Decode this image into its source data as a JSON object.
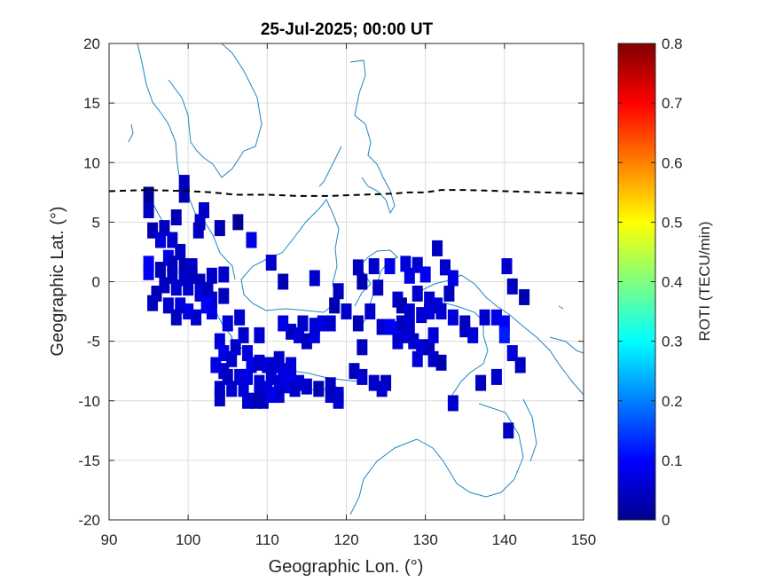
{
  "chart_data": {
    "type": "heatmap",
    "title": "25-Jul-2025; 00:00 UT",
    "xlabel": "Geographic Lon. (°)",
    "ylabel": "Geographic Lat. (°)",
    "xlim": [
      90,
      150
    ],
    "ylim": [
      -20,
      20
    ],
    "xticks": [
      "90",
      "100",
      "110",
      "120",
      "130",
      "140",
      "150"
    ],
    "yticks": [
      "20",
      "15",
      "10",
      "5",
      "0",
      "-5",
      "-10",
      "-15",
      "-20"
    ],
    "grid": true,
    "colorbar": {
      "label": "ROTI (TECU/min)",
      "range": [
        0,
        0.8
      ],
      "colormap": "jet",
      "ticks": [
        "0",
        "0.1",
        "0.2",
        "0.3",
        "0.4",
        "0.5",
        "0.6",
        "0.7",
        "0.8"
      ]
    },
    "terminator_line": {
      "style": "dashed",
      "color": "#000000",
      "points": [
        [
          90,
          7.6
        ],
        [
          95,
          7.7
        ],
        [
          100,
          7.6
        ],
        [
          103,
          7.5
        ],
        [
          106,
          7.3
        ],
        [
          110,
          7.3
        ],
        [
          114,
          7.2
        ],
        [
          118,
          7.2
        ],
        [
          122,
          7.3
        ],
        [
          126,
          7.4
        ],
        [
          128,
          7.5
        ],
        [
          130,
          7.5
        ],
        [
          132,
          7.7
        ],
        [
          135,
          7.7
        ],
        [
          140,
          7.6
        ],
        [
          145,
          7.5
        ],
        [
          150,
          7.4
        ]
      ]
    },
    "roti_points": [
      [
        95,
        7.3,
        0.02
      ],
      [
        95,
        6.0,
        0.05
      ],
      [
        99.5,
        8.3,
        0.05
      ],
      [
        99.5,
        7.3,
        0.04
      ],
      [
        98.5,
        5.4,
        0.04
      ],
      [
        102,
        6.0,
        0.06
      ],
      [
        101.5,
        5.0,
        0.06
      ],
      [
        106.3,
        5.0,
        0.02
      ],
      [
        104,
        4.5,
        0.04
      ],
      [
        101.3,
        4.3,
        0.05
      ],
      [
        97,
        4.5,
        0.05
      ],
      [
        95.5,
        4.3,
        0.04
      ],
      [
        96.5,
        3.5,
        0.07
      ],
      [
        98,
        3.5,
        0.06
      ],
      [
        99,
        2.5,
        0.05
      ],
      [
        97.5,
        2.0,
        0.08
      ],
      [
        108,
        3.5,
        0.08
      ],
      [
        95,
        1.5,
        0.1
      ],
      [
        95,
        0.8,
        0.09
      ],
      [
        96.5,
        1.0,
        0.04
      ],
      [
        98,
        1.5,
        0.05
      ],
      [
        99.5,
        1.3,
        0.04
      ],
      [
        100.5,
        1.3,
        0.06
      ],
      [
        98,
        0.5,
        0.05
      ],
      [
        99.5,
        0.3,
        0.06
      ],
      [
        100.5,
        0.5,
        0.05
      ],
      [
        101.5,
        0.0,
        0.05
      ],
      [
        103,
        0.5,
        0.06
      ],
      [
        104.5,
        0.6,
        0.06
      ],
      [
        97,
        -0.3,
        0.05
      ],
      [
        98.5,
        -0.5,
        0.06
      ],
      [
        100,
        -0.5,
        0.06
      ],
      [
        101.5,
        -1.0,
        0.07
      ],
      [
        102.5,
        -0.7,
        0.05
      ],
      [
        103,
        -1.5,
        0.06
      ],
      [
        104.5,
        -1.2,
        0.05
      ],
      [
        96,
        -1.0,
        0.04
      ],
      [
        95.5,
        -1.8,
        0.05
      ],
      [
        97.5,
        -2.0,
        0.06
      ],
      [
        99,
        -2.0,
        0.07
      ],
      [
        100,
        -2.5,
        0.08
      ],
      [
        102.3,
        -2.0,
        0.1
      ],
      [
        103,
        -2.5,
        0.08
      ],
      [
        101,
        -3.0,
        0.06
      ],
      [
        98.5,
        -3.0,
        0.05
      ],
      [
        110.5,
        1.6,
        0.06
      ],
      [
        116,
        0.3,
        0.06
      ],
      [
        112,
        0.0,
        0.04
      ],
      [
        121.5,
        1.2,
        0.05
      ],
      [
        123.5,
        1.3,
        0.06
      ],
      [
        125.5,
        1.3,
        0.08
      ],
      [
        127.5,
        1.5,
        0.07
      ],
      [
        129,
        1.4,
        0.06
      ],
      [
        131.5,
        2.8,
        0.05
      ],
      [
        132.5,
        1.2,
        0.06
      ],
      [
        133.5,
        0.3,
        0.08
      ],
      [
        130,
        0.6,
        0.09
      ],
      [
        128,
        0.5,
        0.08
      ],
      [
        122,
        0.0,
        0.04
      ],
      [
        124,
        -0.5,
        0.05
      ],
      [
        126.5,
        -1.5,
        0.06
      ],
      [
        129,
        -1.0,
        0.06
      ],
      [
        130.5,
        -1.5,
        0.06
      ],
      [
        131.5,
        -2.0,
        0.07
      ],
      [
        132,
        -2.5,
        0.06
      ],
      [
        133,
        -1.0,
        0.05
      ],
      [
        127,
        -2.0,
        0.04
      ],
      [
        128,
        -2.5,
        0.06
      ],
      [
        129.5,
        -2.8,
        0.06
      ],
      [
        130.5,
        -2.5,
        0.07
      ],
      [
        140.3,
        1.3,
        0.06
      ],
      [
        141,
        -0.4,
        0.05
      ],
      [
        142.5,
        -1.3,
        0.04
      ],
      [
        137.5,
        -3.0,
        0.06
      ],
      [
        139,
        -3.0,
        0.08
      ],
      [
        140,
        -3.5,
        0.1
      ],
      [
        140,
        -4.5,
        0.12
      ],
      [
        133.5,
        -3.0,
        0.07
      ],
      [
        135,
        -4.0,
        0.06
      ],
      [
        136,
        -4.5,
        0.07
      ],
      [
        135,
        -3.5,
        0.05
      ],
      [
        119,
        -0.8,
        0.05
      ],
      [
        118.5,
        -2.0,
        0.04
      ],
      [
        120,
        -2.5,
        0.06
      ],
      [
        121.5,
        -3.5,
        0.04
      ],
      [
        123,
        -2.5,
        0.06
      ],
      [
        124.5,
        -3.8,
        0.06
      ],
      [
        125.5,
        -3.8,
        0.09
      ],
      [
        126.5,
        -4.0,
        0.1
      ],
      [
        127.5,
        -4.5,
        0.07
      ],
      [
        128.5,
        -5.0,
        0.06
      ],
      [
        129.5,
        -5.5,
        0.07
      ],
      [
        130.5,
        -5.5,
        0.05
      ],
      [
        131,
        -6.5,
        0.06
      ],
      [
        129,
        -6.5,
        0.07
      ],
      [
        126.5,
        -5.0,
        0.06
      ],
      [
        132,
        -6.8,
        0.04
      ],
      [
        137,
        -8.5,
        0.05
      ],
      [
        139,
        -8.0,
        0.06
      ],
      [
        141,
        -6.0,
        0.07
      ],
      [
        142,
        -7.0,
        0.05
      ],
      [
        133.5,
        -10.2,
        0.06
      ],
      [
        140.5,
        -12.5,
        0.05
      ],
      [
        122,
        -5.5,
        0.05
      ],
      [
        121,
        -7.5,
        0.05
      ],
      [
        122,
        -8.0,
        0.06
      ],
      [
        123.5,
        -8.5,
        0.06
      ],
      [
        125,
        -8.5,
        0.05
      ],
      [
        124.5,
        -9.0,
        0.06
      ],
      [
        119,
        -9.5,
        0.06
      ],
      [
        116.5,
        -9.0,
        0.04
      ],
      [
        118,
        -8.7,
        0.05
      ],
      [
        115,
        -8.8,
        0.06
      ],
      [
        114,
        -8.5,
        0.06
      ],
      [
        113,
        -4.2,
        0.05
      ],
      [
        114,
        -4.5,
        0.07
      ],
      [
        115,
        -5.0,
        0.05
      ],
      [
        116,
        -4.5,
        0.08
      ],
      [
        117,
        -3.5,
        0.08
      ],
      [
        118,
        -3.5,
        0.06
      ],
      [
        114.5,
        -3.5,
        0.06
      ],
      [
        116,
        -3.7,
        0.07
      ],
      [
        112,
        -3.5,
        0.08
      ],
      [
        109,
        -4.5,
        0.06
      ],
      [
        105,
        -3.5,
        0.07
      ],
      [
        106.5,
        -3.0,
        0.06
      ],
      [
        107,
        -4.5,
        0.06
      ],
      [
        104,
        -5.0,
        0.07
      ],
      [
        104.5,
        -6.0,
        0.08
      ],
      [
        105.5,
        -6.5,
        0.06
      ],
      [
        106,
        -5.5,
        0.06
      ],
      [
        107.5,
        -6.0,
        0.07
      ],
      [
        108,
        -7.0,
        0.08
      ],
      [
        109,
        -6.8,
        0.06
      ],
      [
        110,
        -7.0,
        0.07
      ],
      [
        111,
        -7.0,
        0.06
      ],
      [
        112,
        -7.5,
        0.08
      ],
      [
        113,
        -7.0,
        0.07
      ],
      [
        111.5,
        -6.5,
        0.06
      ],
      [
        113,
        -8.0,
        0.08
      ],
      [
        103.5,
        -7.0,
        0.08
      ],
      [
        104.5,
        -7.5,
        0.07
      ],
      [
        105,
        -8.0,
        0.05
      ],
      [
        106.5,
        -8.0,
        0.07
      ],
      [
        107.5,
        -8.0,
        0.08
      ],
      [
        109,
        -8.5,
        0.07
      ],
      [
        110.5,
        -8.0,
        0.06
      ],
      [
        111.5,
        -8.5,
        0.07
      ],
      [
        112.5,
        -8.7,
        0.08
      ],
      [
        104,
        -9.0,
        0.06
      ],
      [
        105.5,
        -9.0,
        0.06
      ],
      [
        107,
        -9.0,
        0.07
      ],
      [
        109,
        -9.5,
        0.06
      ],
      [
        110,
        -9.0,
        0.07
      ],
      [
        104,
        -9.8,
        0.05
      ],
      [
        108.5,
        -10.0,
        0.04
      ],
      [
        107.5,
        -10.0,
        0.06
      ],
      [
        109.5,
        -10.0,
        0.05
      ],
      [
        111.5,
        -9.5,
        0.06
      ],
      [
        110.5,
        -9.5,
        0.08
      ],
      [
        113.5,
        -9.0,
        0.06
      ],
      [
        118,
        -9.5,
        0.05
      ],
      [
        119,
        -10.0,
        0.06
      ],
      [
        127,
        -3.5,
        0.05
      ],
      [
        128,
        -3.8,
        0.06
      ],
      [
        131,
        -4.5,
        0.07
      ]
    ]
  }
}
